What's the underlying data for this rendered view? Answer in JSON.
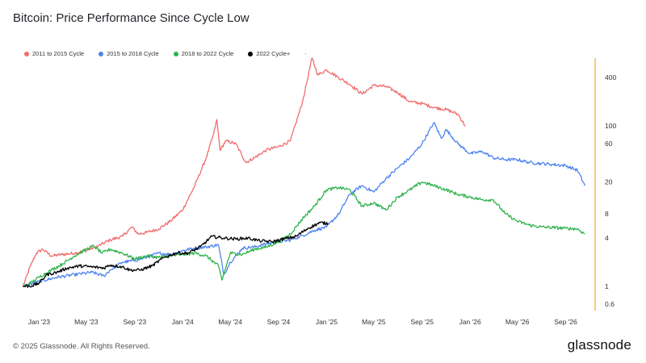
{
  "title": "Bitcoin: Price Performance Since Cycle Low",
  "legend": [
    {
      "label": "2011 to 2015 Cycle",
      "color": "#f26d6d"
    },
    {
      "label": "2015 to 2018 Cycle",
      "color": "#4f84ef"
    },
    {
      "label": "2018 to 2022 Cycle",
      "color": "#2db34a"
    },
    {
      "label": "2022 Cycle+",
      "color": "#000000"
    }
  ],
  "legend_extra": "-",
  "footer": "© 2025 Glassnode. All Rights Reserved.",
  "logo": "glassnode",
  "chart_data": {
    "type": "line",
    "title": "Bitcoin: Price Performance Since Cycle Low",
    "y_scale": "log",
    "y_ticks": [
      0.6,
      1,
      4,
      8,
      20,
      60,
      100,
      400
    ],
    "ylim": [
      0.5,
      700
    ],
    "x_ticks": [
      "Jan '23",
      "May '23",
      "Sep '23",
      "Jan '24",
      "May '24",
      "Sep '24",
      "Jan '25",
      "May '25",
      "Sep '25",
      "Jan '26",
      "May '26",
      "Sep '26"
    ],
    "xlim": [
      "2022-11-20",
      "2026-11-15"
    ],
    "series": [
      {
        "name": "2011 to 2015 Cycle",
        "color": "#f26d6d",
        "points": [
          [
            "2022-11-21",
            1
          ],
          [
            "2022-12-10",
            1.8
          ],
          [
            "2022-12-25",
            2.6
          ],
          [
            "2023-01-10",
            2.9
          ],
          [
            "2023-02-01",
            2.4
          ],
          [
            "2023-03-01",
            2.5
          ],
          [
            "2023-04-01",
            2.6
          ],
          [
            "2023-05-01",
            2.8
          ],
          [
            "2023-06-01",
            3.2
          ],
          [
            "2023-07-01",
            3.8
          ],
          [
            "2023-08-01",
            4.2
          ],
          [
            "2023-08-25",
            5.5
          ],
          [
            "2023-09-10",
            4.5
          ],
          [
            "2023-10-01",
            4.7
          ],
          [
            "2023-11-01",
            5.2
          ],
          [
            "2023-12-01",
            6.5
          ],
          [
            "2024-01-01",
            9
          ],
          [
            "2024-02-01",
            18
          ],
          [
            "2024-03-01",
            40
          ],
          [
            "2024-03-20",
            80
          ],
          [
            "2024-03-28",
            120
          ],
          [
            "2024-04-05",
            50
          ],
          [
            "2024-04-20",
            65
          ],
          [
            "2024-05-15",
            60
          ],
          [
            "2024-06-10",
            35
          ],
          [
            "2024-07-01",
            40
          ],
          [
            "2024-08-01",
            50
          ],
          [
            "2024-09-01",
            55
          ],
          [
            "2024-10-01",
            65
          ],
          [
            "2024-11-01",
            200
          ],
          [
            "2024-11-25",
            700
          ],
          [
            "2024-12-10",
            430
          ],
          [
            "2025-01-01",
            500
          ],
          [
            "2025-02-01",
            400
          ],
          [
            "2025-03-01",
            330
          ],
          [
            "2025-04-01",
            250
          ],
          [
            "2025-05-01",
            320
          ],
          [
            "2025-06-01",
            310
          ],
          [
            "2025-07-01",
            260
          ],
          [
            "2025-08-01",
            200
          ],
          [
            "2025-09-01",
            190
          ],
          [
            "2025-10-01",
            170
          ],
          [
            "2025-11-01",
            160
          ],
          [
            "2025-12-01",
            140
          ],
          [
            "2025-12-20",
            100
          ]
        ]
      },
      {
        "name": "2015 to 2018 Cycle",
        "color": "#4f84ef",
        "points": [
          [
            "2022-11-21",
            1
          ],
          [
            "2023-01-01",
            1.15
          ],
          [
            "2023-02-15",
            1.3
          ],
          [
            "2023-04-01",
            1.4
          ],
          [
            "2023-05-15",
            1.5
          ],
          [
            "2023-06-15",
            1.35
          ],
          [
            "2023-07-01",
            1.6
          ],
          [
            "2023-08-01",
            2
          ],
          [
            "2023-09-01",
            2.1
          ],
          [
            "2023-10-01",
            2.3
          ],
          [
            "2023-11-01",
            2.6
          ],
          [
            "2023-12-01",
            2.5
          ],
          [
            "2024-01-01",
            2.8
          ],
          [
            "2024-02-01",
            3
          ],
          [
            "2024-03-01",
            3.1
          ],
          [
            "2024-04-01",
            3.3
          ],
          [
            "2024-04-15",
            1.4
          ],
          [
            "2024-05-01",
            2
          ],
          [
            "2024-06-01",
            3
          ],
          [
            "2024-07-01",
            3.1
          ],
          [
            "2024-08-01",
            3.4
          ],
          [
            "2024-09-01",
            3.6
          ],
          [
            "2024-10-01",
            3.8
          ],
          [
            "2024-11-01",
            4.3
          ],
          [
            "2024-12-01",
            5
          ],
          [
            "2025-01-01",
            5.5
          ],
          [
            "2025-02-01",
            8
          ],
          [
            "2025-03-01",
            14
          ],
          [
            "2025-04-01",
            18
          ],
          [
            "2025-05-01",
            15
          ],
          [
            "2025-06-01",
            22
          ],
          [
            "2025-07-01",
            30
          ],
          [
            "2025-08-01",
            40
          ],
          [
            "2025-09-01",
            60
          ],
          [
            "2025-10-01",
            110
          ],
          [
            "2025-10-20",
            70
          ],
          [
            "2025-11-01",
            90
          ],
          [
            "2025-12-01",
            60
          ],
          [
            "2026-01-01",
            45
          ],
          [
            "2026-02-01",
            48
          ],
          [
            "2026-03-01",
            40
          ],
          [
            "2026-04-01",
            38
          ],
          [
            "2026-05-01",
            38
          ],
          [
            "2026-06-01",
            35
          ],
          [
            "2026-07-01",
            34
          ],
          [
            "2026-08-01",
            33
          ],
          [
            "2026-09-01",
            32
          ],
          [
            "2026-10-01",
            28
          ],
          [
            "2026-10-20",
            18
          ]
        ]
      },
      {
        "name": "2018 to 2022 Cycle",
        "color": "#2db34a",
        "points": [
          [
            "2022-11-21",
            1
          ],
          [
            "2022-12-10",
            1.1
          ],
          [
            "2023-01-01",
            1.3
          ],
          [
            "2023-02-01",
            1.6
          ],
          [
            "2023-03-01",
            1.9
          ],
          [
            "2023-04-01",
            2.4
          ],
          [
            "2023-05-01",
            2.9
          ],
          [
            "2023-05-20",
            3.2
          ],
          [
            "2023-06-10",
            2.6
          ],
          [
            "2023-07-01",
            2.9
          ],
          [
            "2023-08-01",
            2.6
          ],
          [
            "2023-09-01",
            2.2
          ],
          [
            "2023-10-01",
            2.4
          ],
          [
            "2023-11-01",
            2.3
          ],
          [
            "2023-12-01",
            2.4
          ],
          [
            "2024-01-01",
            2.5
          ],
          [
            "2024-02-01",
            2.6
          ],
          [
            "2024-03-01",
            2.4
          ],
          [
            "2024-04-01",
            1.8
          ],
          [
            "2024-04-10",
            1.2
          ],
          [
            "2024-05-01",
            2.6
          ],
          [
            "2024-06-01",
            2.5
          ],
          [
            "2024-07-01",
            2.9
          ],
          [
            "2024-08-01",
            3.1
          ],
          [
            "2024-09-01",
            3.6
          ],
          [
            "2024-10-01",
            4.5
          ],
          [
            "2024-11-01",
            7
          ],
          [
            "2024-12-01",
            10
          ],
          [
            "2025-01-01",
            16
          ],
          [
            "2025-02-01",
            17
          ],
          [
            "2025-03-01",
            16
          ],
          [
            "2025-04-01",
            10
          ],
          [
            "2025-05-01",
            11
          ],
          [
            "2025-06-01",
            9
          ],
          [
            "2025-07-01",
            13
          ],
          [
            "2025-08-01",
            16
          ],
          [
            "2025-09-01",
            20
          ],
          [
            "2025-10-01",
            18
          ],
          [
            "2025-11-01",
            16
          ],
          [
            "2025-12-01",
            14
          ],
          [
            "2026-01-01",
            13
          ],
          [
            "2026-02-01",
            12
          ],
          [
            "2026-03-01",
            12
          ],
          [
            "2026-04-01",
            8
          ],
          [
            "2026-05-01",
            6.5
          ],
          [
            "2026-06-01",
            5.8
          ],
          [
            "2026-07-01",
            5.5
          ],
          [
            "2026-08-01",
            5.4
          ],
          [
            "2026-09-01",
            5.3
          ],
          [
            "2026-10-01",
            5.2
          ],
          [
            "2026-10-20",
            4.5
          ]
        ]
      },
      {
        "name": "2022 Cycle+",
        "color": "#000000",
        "points": [
          [
            "2022-11-21",
            1
          ],
          [
            "2022-12-15",
            1.02
          ],
          [
            "2023-01-01",
            1.1
          ],
          [
            "2023-01-20",
            1.4
          ],
          [
            "2023-02-15",
            1.5
          ],
          [
            "2023-03-15",
            1.7
          ],
          [
            "2023-04-15",
            1.8
          ],
          [
            "2023-05-15",
            1.75
          ],
          [
            "2023-06-15",
            1.7
          ],
          [
            "2023-07-01",
            1.85
          ],
          [
            "2023-08-01",
            1.75
          ],
          [
            "2023-08-20",
            1.6
          ],
          [
            "2023-09-15",
            1.6
          ],
          [
            "2023-10-15",
            1.8
          ],
          [
            "2023-11-15",
            2.3
          ],
          [
            "2023-12-15",
            2.6
          ],
          [
            "2024-01-15",
            2.6
          ],
          [
            "2024-02-15",
            3.1
          ],
          [
            "2024-03-15",
            4.2
          ],
          [
            "2024-04-15",
            4
          ],
          [
            "2024-05-15",
            3.9
          ],
          [
            "2024-06-15",
            4
          ],
          [
            "2024-07-15",
            3.7
          ],
          [
            "2024-08-15",
            3.6
          ],
          [
            "2024-09-15",
            3.9
          ],
          [
            "2024-10-15",
            4.2
          ],
          [
            "2024-11-15",
            5.3
          ],
          [
            "2024-12-15",
            6.2
          ],
          [
            "2025-01-05",
            6.1
          ]
        ]
      }
    ]
  }
}
